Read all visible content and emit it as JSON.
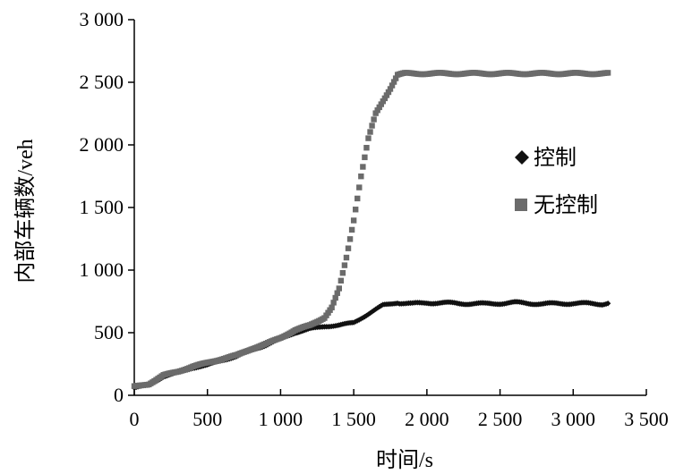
{
  "chart_data": {
    "type": "scatter",
    "title": "",
    "xlabel": "时间/s",
    "ylabel": "内部车辆数/veh",
    "xlim": [
      0,
      3500
    ],
    "ylim": [
      0,
      3000
    ],
    "x_ticks": [
      0,
      500,
      1000,
      1500,
      2000,
      2500,
      3000,
      3500
    ],
    "y_ticks": [
      0,
      500,
      1000,
      1500,
      2000,
      2500,
      3000
    ],
    "x_tick_labels": [
      "0",
      "500",
      "1 000",
      "1 500",
      "2 000",
      "2 500",
      "3 000",
      "3 500"
    ],
    "y_tick_labels": [
      "0",
      "500",
      "1 000",
      "1 500",
      "2 000",
      "2 500",
      "3 000"
    ],
    "grid": false,
    "legend_position": "right",
    "series": [
      {
        "name": "控制",
        "marker": "diamond",
        "color": "#111111",
        "x": [
          0,
          100,
          200,
          300,
          400,
          500,
          600,
          700,
          800,
          900,
          1000,
          1100,
          1200,
          1300,
          1400,
          1500,
          1600,
          1700,
          1800,
          1900,
          2000,
          2200,
          2400,
          2600,
          2800,
          3000,
          3200,
          3250
        ],
        "y": [
          60,
          80,
          150,
          180,
          220,
          240,
          280,
          310,
          360,
          400,
          450,
          500,
          530,
          550,
          560,
          580,
          650,
          720,
          740,
          730,
          740,
          735,
          730,
          740,
          730,
          735,
          730,
          740
        ]
      },
      {
        "name": "无控制",
        "marker": "square",
        "color": "#6b6b6b",
        "x": [
          0,
          100,
          200,
          300,
          400,
          500,
          600,
          700,
          800,
          900,
          1000,
          1100,
          1200,
          1300,
          1350,
          1400,
          1450,
          1500,
          1550,
          1600,
          1650,
          1700,
          1750,
          1800,
          1850,
          1900,
          2000,
          2200,
          2400,
          2600,
          2800,
          3000,
          3200,
          3250
        ],
        "y": [
          70,
          90,
          160,
          190,
          230,
          260,
          290,
          320,
          370,
          410,
          460,
          520,
          560,
          620,
          700,
          850,
          1100,
          1400,
          1750,
          2050,
          2250,
          2350,
          2450,
          2560,
          2570,
          2570,
          2570,
          2570,
          2570,
          2570,
          2570,
          2570,
          2570,
          2570
        ]
      }
    ]
  }
}
